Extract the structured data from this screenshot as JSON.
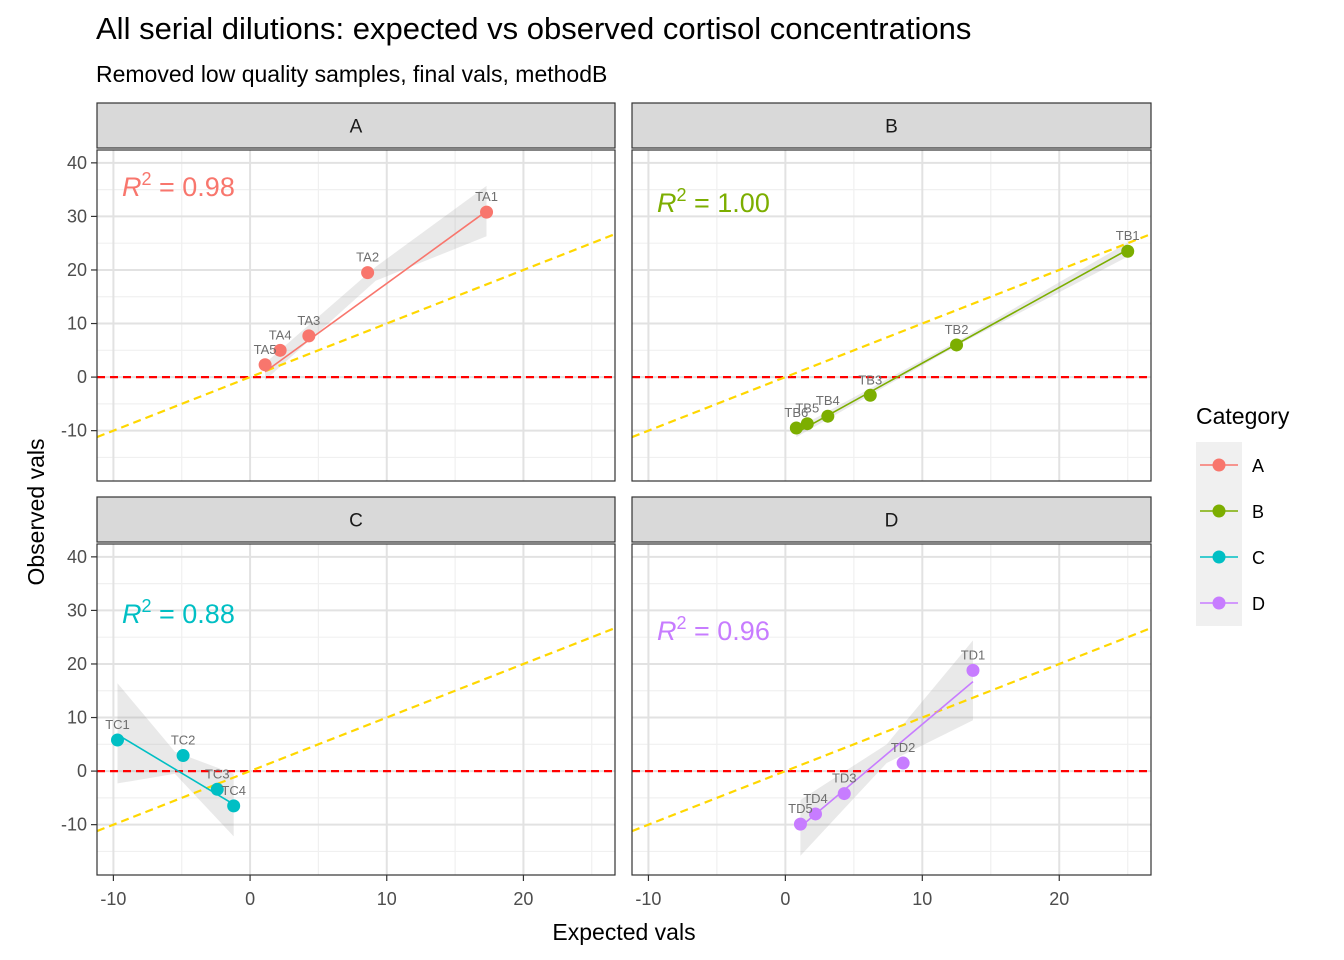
{
  "chart_data": {
    "type": "scatter",
    "title": "All serial dilutions: expected vs observed cortisol concentrations",
    "subtitle": "Removed low quality samples, final vals, methodB",
    "xlabel": "Expected vals",
    "ylabel": "Observed vals",
    "xlim": [
      -11.2,
      26.7
    ],
    "ylim": [
      -19.4,
      42.4
    ],
    "x_ticks": [
      -10,
      0,
      10,
      20
    ],
    "y_ticks": [
      -10,
      0,
      10,
      20,
      30,
      40
    ],
    "grid": true,
    "legend": {
      "title": "Category",
      "placement": "right",
      "entries": [
        "A",
        "B",
        "C",
        "D"
      ]
    },
    "reference_lines": [
      {
        "kind": "horizontal",
        "y": 0,
        "color": "#ff0000",
        "style": "dashed"
      },
      {
        "kind": "identity",
        "slope": 1,
        "intercept": 0,
        "color": "#ffd700",
        "style": "dashed"
      }
    ],
    "facets": [
      {
        "name": "A",
        "color": "#f8766d",
        "r2_label": "R",
        "r2_sup": "2",
        "r2_value": " = 0.98",
        "points": [
          {
            "label": "TA1",
            "x": 17.3,
            "y": 30.8
          },
          {
            "label": "TA2",
            "x": 8.6,
            "y": 19.5
          },
          {
            "label": "TA3",
            "x": 4.3,
            "y": 7.7
          },
          {
            "label": "TA4",
            "x": 2.2,
            "y": 5.0
          },
          {
            "label": "TA5",
            "x": 1.1,
            "y": 2.3
          }
        ],
        "fit": {
          "x": [
            1.1,
            17.3
          ],
          "y": [
            1.0,
            31.0
          ]
        },
        "band": {
          "x": [
            1.1,
            9.2,
            17.3
          ],
          "lower": [
            -0.6,
            18.0,
            26.3
          ],
          "upper": [
            2.6,
            20.6,
            35.7
          ]
        }
      },
      {
        "name": "B",
        "color": "#7cae00",
        "r2_label": "R",
        "r2_sup": "2",
        "r2_value": " = 1.00",
        "points": [
          {
            "label": "TB1",
            "x": 25.0,
            "y": 23.5
          },
          {
            "label": "TB2",
            "x": 12.5,
            "y": 6.0
          },
          {
            "label": "TB3",
            "x": 6.2,
            "y": -3.4
          },
          {
            "label": "TB4",
            "x": 3.1,
            "y": -7.3
          },
          {
            "label": "TB5",
            "x": 1.6,
            "y": -8.7
          },
          {
            "label": "TB6",
            "x": 0.8,
            "y": -9.5
          }
        ],
        "fit": {
          "x": [
            0.8,
            25.0
          ],
          "y": [
            -10.4,
            23.8
          ]
        },
        "band": {
          "x": [
            0.8,
            12.9,
            25.0
          ],
          "lower": [
            -11.2,
            6.4,
            22.5
          ],
          "upper": [
            -9.6,
            7.2,
            25.1
          ]
        }
      },
      {
        "name": "C",
        "color": "#00bfc4",
        "r2_label": "R",
        "r2_sup": "2",
        "r2_value": " = 0.88",
        "points": [
          {
            "label": "TC1",
            "x": -9.7,
            "y": 5.8
          },
          {
            "label": "TC2",
            "x": -4.9,
            "y": 2.9
          },
          {
            "label": "TC3",
            "x": -2.4,
            "y": -3.4
          },
          {
            "label": "TC4",
            "x": -1.2,
            "y": -6.5
          }
        ],
        "fit": {
          "x": [
            -9.7,
            -1.2
          ],
          "y": [
            6.8,
            -6.2
          ]
        },
        "band": {
          "x": [
            -9.7,
            -5.5,
            -1.2
          ],
          "lower": [
            -2.3,
            -0.5,
            -12.2
          ],
          "upper": [
            16.4,
            3.6,
            -0.5
          ]
        }
      },
      {
        "name": "D",
        "color": "#c77cff",
        "r2_label": "R",
        "r2_sup": "2",
        "r2_value": " = 0.96",
        "points": [
          {
            "label": "TD1",
            "x": 13.7,
            "y": 18.8
          },
          {
            "label": "TD2",
            "x": 8.6,
            "y": 1.5
          },
          {
            "label": "TD3",
            "x": 4.3,
            "y": -4.2
          },
          {
            "label": "TD4",
            "x": 2.2,
            "y": -8.0
          },
          {
            "label": "TD5",
            "x": 1.1,
            "y": -9.9
          }
        ],
        "fit": {
          "x": [
            1.1,
            13.7
          ],
          "y": [
            -10.4,
            16.7
          ]
        },
        "band": {
          "x": [
            1.1,
            7.4,
            13.7
          ],
          "lower": [
            -15.8,
            1.5,
            9.5
          ],
          "upper": [
            -5.4,
            5.0,
            24.4
          ]
        }
      }
    ]
  }
}
